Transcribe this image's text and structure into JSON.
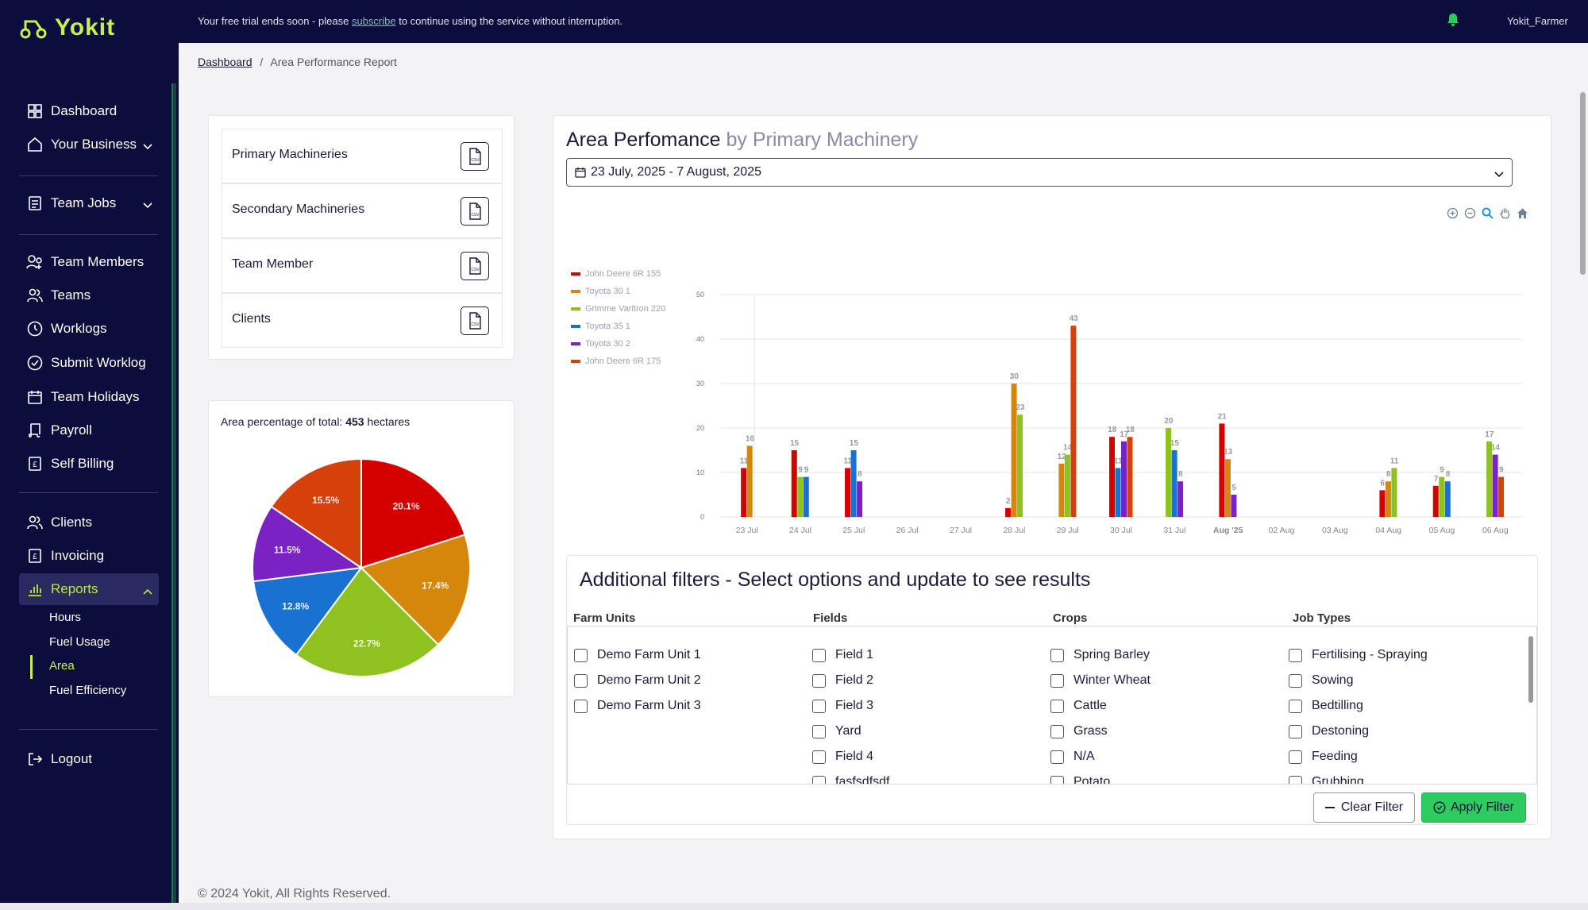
{
  "app": {
    "brand": "Yokit",
    "brand_color": "#c8f04a"
  },
  "topbar": {
    "trial_prefix": "Your free trial ends soon - please",
    "trial_link": "subscribe",
    "trial_suffix": "to continue using the service without interruption.",
    "username": "Yokit_Farmer"
  },
  "sidebar": {
    "items": [
      {
        "label": "Dashboard",
        "icon": "dashboard-icon"
      },
      {
        "label": "Your Business",
        "icon": "home-icon"
      },
      {
        "label": "Team Jobs",
        "icon": "clipboard-icon"
      },
      {
        "label": "Team Members",
        "icon": "team-members-icon"
      },
      {
        "label": "Teams",
        "icon": "teams-icon"
      },
      {
        "label": "Worklogs",
        "icon": "clock-icon"
      },
      {
        "label": "Submit Worklog",
        "icon": "submit-clock-icon"
      },
      {
        "label": "Team Holidays",
        "icon": "calendar-icon"
      },
      {
        "label": "Payroll",
        "icon": "scroll-icon"
      },
      {
        "label": "Self Billing",
        "icon": "billing-icon"
      },
      {
        "label": "Clients",
        "icon": "clients-icon"
      },
      {
        "label": "Invoicing",
        "icon": "invoice-icon"
      },
      {
        "label": "Reports",
        "icon": "chart-icon"
      },
      {
        "label": "Logout",
        "icon": "logout-icon"
      }
    ],
    "report_sub": [
      "Hours",
      "Fuel Usage",
      "Area",
      "Fuel Efficiency"
    ],
    "active_sub": "Area"
  },
  "breadcrumb": {
    "home": "Dashboard",
    "separator": "/",
    "current": "Area Performance Report"
  },
  "reports_list": [
    "Primary Machineries",
    "Secondary Machineries",
    "Team Member",
    "Clients"
  ],
  "pie": {
    "title_prefix": "Area percentage of total:",
    "total": "453",
    "unit": "hectares"
  },
  "chart_header": {
    "title": "Area Perfomance",
    "subtitle": "by Primary Machinery",
    "date_range": "23 July, 2025 - 7 August, 2025"
  },
  "chart_data": [
    {
      "type": "bar",
      "categories": [
        "23 Jul",
        "24 Jul",
        "25 Jul",
        "26 Jul",
        "27 Jul",
        "28 Jul",
        "29 Jul",
        "30 Jul",
        "31 Jul",
        "Aug '25",
        "02 Aug",
        "03 Aug",
        "04 Aug",
        "05 Aug",
        "06 Aug"
      ],
      "ylim": [
        0,
        50
      ],
      "yticks": [
        0,
        10,
        20,
        30,
        40,
        50
      ],
      "legend_position": "top-left",
      "grid": true,
      "series": [
        {
          "name": "John Deere 6R 155",
          "color": "#d40000",
          "values": [
            11,
            15,
            11,
            null,
            null,
            2,
            null,
            18,
            null,
            21,
            null,
            null,
            6,
            7,
            null
          ]
        },
        {
          "name": "Toyota 30 1",
          "color": "#d4870a",
          "values": [
            16,
            null,
            null,
            null,
            null,
            30,
            12,
            null,
            null,
            13,
            null,
            null,
            8,
            null,
            null
          ]
        },
        {
          "name": "Grimme Varitron 220",
          "color": "#8ec21e",
          "values": [
            null,
            9,
            null,
            null,
            null,
            23,
            14,
            null,
            20,
            null,
            null,
            null,
            11,
            9,
            17
          ]
        },
        {
          "name": "Toyota 35 1",
          "color": "#1a72d0",
          "values": [
            null,
            9,
            15,
            null,
            null,
            null,
            null,
            11,
            15,
            null,
            null,
            null,
            null,
            8,
            null
          ]
        },
        {
          "name": "Toyota 30 2",
          "color": "#7b22c4",
          "values": [
            null,
            null,
            8,
            null,
            null,
            null,
            null,
            17,
            8,
            5,
            null,
            null,
            null,
            null,
            14
          ]
        },
        {
          "name": "John Deere 6R 175",
          "color": "#d6400a",
          "values": [
            null,
            null,
            null,
            null,
            null,
            null,
            43,
            18,
            null,
            null,
            null,
            null,
            null,
            null,
            9
          ]
        }
      ]
    },
    {
      "type": "pie",
      "slices": [
        {
          "value": 20.1,
          "label": "20.1%",
          "color": "#d40000"
        },
        {
          "value": 17.4,
          "label": "17.4%",
          "color": "#d4870a"
        },
        {
          "value": 22.7,
          "label": "22.7%",
          "color": "#8ec21e"
        },
        {
          "value": 12.8,
          "label": "12.8%",
          "color": "#1a72d0"
        },
        {
          "value": 11.5,
          "label": "11.5%",
          "color": "#7b22c4"
        },
        {
          "value": 15.5,
          "label": "15.5%",
          "color": "#d6400a"
        }
      ]
    }
  ],
  "filters": {
    "title": "Additional filters - Select options and update to see results",
    "columns": [
      {
        "header": "Farm Units",
        "options": [
          "Demo Farm Unit 1",
          "Demo Farm Unit 2",
          "Demo Farm Unit 3"
        ]
      },
      {
        "header": "Fields",
        "options": [
          "Field 1",
          "Field 2",
          "Field 3",
          "Yard",
          "Field 4",
          "fasfsdfsdf"
        ]
      },
      {
        "header": "Crops",
        "options": [
          "Spring Barley",
          "Winter Wheat",
          "Cattle",
          "Grass",
          "N/A",
          "Potato"
        ]
      },
      {
        "header": "Job Types",
        "options": [
          "Fertilising - Spraying",
          "Sowing",
          "Bedtilling",
          "Destoning",
          "Feeding",
          "Grubbing"
        ]
      }
    ],
    "clear_label": "Clear Filter",
    "apply_label": "Apply Filter"
  },
  "footer": "© 2024 Yokit, All Rights Reserved."
}
